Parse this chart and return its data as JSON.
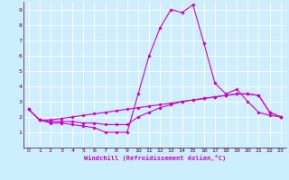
{
  "background_color": "#cceeff",
  "grid_color": "#ffffff",
  "line_color": "#cc00cc",
  "xlabel": "Windchill (Refroidissement éolien,°C)",
  "xlim": [
    -0.5,
    23.5
  ],
  "ylim": [
    0,
    9.5
  ],
  "xticks": [
    0,
    1,
    2,
    3,
    4,
    5,
    6,
    7,
    8,
    9,
    10,
    11,
    12,
    13,
    14,
    15,
    16,
    17,
    18,
    19,
    20,
    21,
    22,
    23
  ],
  "yticks": [
    1,
    2,
    3,
    4,
    5,
    6,
    7,
    8,
    9
  ],
  "line1_x": [
    0,
    1,
    2,
    3,
    4,
    5,
    6,
    7,
    8,
    9,
    10,
    11,
    12,
    13,
    14,
    15,
    16,
    17,
    18,
    19,
    20,
    21,
    22,
    23
  ],
  "line1_y": [
    2.5,
    1.8,
    1.6,
    1.6,
    1.5,
    1.4,
    1.3,
    1.0,
    1.0,
    1.0,
    3.5,
    6.0,
    7.8,
    9.0,
    8.8,
    9.3,
    6.8,
    4.2,
    3.5,
    3.8,
    3.0,
    2.3,
    2.1,
    2.0
  ],
  "line2_x": [
    0,
    1,
    2,
    3,
    4,
    5,
    6,
    7,
    8,
    9,
    10,
    11,
    12,
    13,
    14,
    15,
    16,
    17,
    18,
    19,
    20,
    21,
    22,
    23
  ],
  "line2_y": [
    2.5,
    1.8,
    1.8,
    1.9,
    2.0,
    2.1,
    2.2,
    2.3,
    2.4,
    2.5,
    2.6,
    2.7,
    2.8,
    2.9,
    3.0,
    3.1,
    3.2,
    3.3,
    3.4,
    3.5,
    3.5,
    3.4,
    2.3,
    2.0
  ],
  "line3_x": [
    0,
    1,
    2,
    3,
    4,
    5,
    6,
    7,
    8,
    9,
    10,
    11,
    12,
    13,
    14,
    15,
    16,
    17,
    18,
    19,
    20,
    21,
    22,
    23
  ],
  "line3_y": [
    2.5,
    1.8,
    1.7,
    1.7,
    1.7,
    1.6,
    1.6,
    1.5,
    1.5,
    1.5,
    2.0,
    2.3,
    2.6,
    2.8,
    3.0,
    3.1,
    3.2,
    3.3,
    3.4,
    3.5,
    3.5,
    3.4,
    2.3,
    2.0
  ]
}
